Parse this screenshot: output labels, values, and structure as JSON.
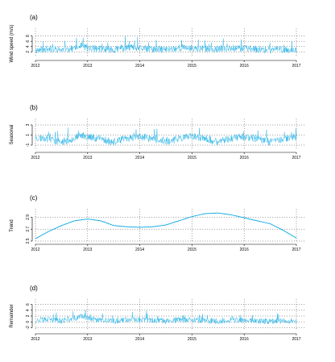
{
  "chart_data": [
    {
      "type": "line",
      "panel_label": "(a)",
      "ylabel": "Wind speed (m/s)",
      "x_tick_labels": [
        "2012",
        "2013",
        "2014",
        "2015",
        "2016",
        "2017"
      ],
      "y_tick_labels": [
        "2",
        "4",
        "6",
        "8"
      ],
      "y_ticks": [
        2,
        4,
        6,
        8
      ],
      "xlim": [
        2012,
        2017
      ],
      "ylim": [
        0,
        10
      ],
      "grid": true,
      "series_color": "#1aaee5",
      "x": [
        2012.0,
        2012.25,
        2012.5,
        2012.75,
        2012.9,
        2013.0,
        2013.25,
        2013.5,
        2013.75,
        2014.0,
        2014.25,
        2014.5,
        2014.75,
        2015.0,
        2015.25,
        2015.5,
        2015.75,
        2016.0,
        2016.25,
        2016.5,
        2016.75,
        2017.0
      ],
      "values": [
        2.5,
        3.0,
        2.6,
        3.2,
        4.2,
        3.4,
        3.0,
        2.7,
        3.5,
        3.2,
        2.9,
        2.8,
        3.4,
        3.3,
        3.1,
        2.9,
        3.3,
        3.2,
        2.9,
        2.6,
        2.9,
        2.4
      ]
    },
    {
      "type": "line",
      "panel_label": "(b)",
      "ylabel": "Seasonal",
      "x_tick_labels": [
        "2012",
        "2013",
        "2014",
        "2015",
        "2016",
        "2017"
      ],
      "y_tick_labels": [
        "-1",
        "1",
        "3"
      ],
      "y_ticks": [
        -1,
        1,
        3
      ],
      "xlim": [
        2012,
        2017
      ],
      "ylim": [
        -1.8,
        3.8
      ],
      "grid": true,
      "series_color": "#1aaee5",
      "x": [
        2012.0,
        2012.25,
        2012.5,
        2012.75,
        2012.9,
        2013.0,
        2013.25,
        2013.5,
        2013.75,
        2014.0,
        2014.25,
        2014.5,
        2014.75,
        2015.0,
        2015.25,
        2015.5,
        2015.75,
        2016.0,
        2016.25,
        2016.5,
        2016.75,
        2017.0
      ],
      "values": [
        0.4,
        0.2,
        -0.5,
        0.3,
        0.9,
        0.6,
        0.2,
        -0.5,
        0.3,
        0.6,
        0.2,
        -0.5,
        0.3,
        0.6,
        0.2,
        -0.5,
        0.3,
        0.6,
        0.2,
        -0.5,
        0.3,
        0.6
      ]
    },
    {
      "type": "line",
      "panel_label": "(c)",
      "ylabel": "Trend",
      "x_tick_labels": [
        "2012",
        "2013",
        "2014",
        "2015",
        "2016",
        "2017"
      ],
      "y_tick_labels": [
        "2.5",
        "2.7",
        "2.9"
      ],
      "y_ticks": [
        2.5,
        2.7,
        2.9
      ],
      "xlim": [
        2012,
        2017
      ],
      "ylim": [
        2.5,
        3.0
      ],
      "grid": true,
      "series_color": "#1aaee5",
      "x": [
        2012.0,
        2012.25,
        2012.5,
        2012.75,
        2013.0,
        2013.25,
        2013.5,
        2013.75,
        2014.0,
        2014.25,
        2014.5,
        2014.75,
        2015.0,
        2015.25,
        2015.5,
        2015.75,
        2016.0,
        2016.25,
        2016.5,
        2016.75,
        2017.0
      ],
      "values": [
        2.54,
        2.66,
        2.76,
        2.84,
        2.87,
        2.84,
        2.76,
        2.74,
        2.73,
        2.74,
        2.77,
        2.84,
        2.91,
        2.96,
        2.97,
        2.94,
        2.89,
        2.84,
        2.79,
        2.68,
        2.55
      ]
    },
    {
      "type": "line",
      "panel_label": "(d)",
      "ylabel": "Remainder",
      "x_tick_labels": [
        "2012",
        "2013",
        "2014",
        "2015",
        "2016",
        "2017"
      ],
      "y_tick_labels": [
        "-2",
        "0",
        "2",
        "4",
        "6"
      ],
      "y_ticks": [
        -2,
        0,
        2,
        4,
        6
      ],
      "xlim": [
        2012,
        2017
      ],
      "ylim": [
        -3,
        7
      ],
      "grid": true,
      "series_color": "#1aaee5",
      "x": [
        2012.0,
        2012.25,
        2012.5,
        2012.75,
        2012.9,
        2013.0,
        2013.25,
        2013.5,
        2013.75,
        2014.0,
        2014.25,
        2014.5,
        2014.75,
        2015.0,
        2015.25,
        2015.5,
        2015.75,
        2016.0,
        2016.25,
        2016.5,
        2016.75,
        2017.0
      ],
      "values": [
        0.5,
        0.6,
        0.3,
        0.9,
        2.0,
        1.0,
        0.4,
        0.1,
        0.8,
        0.7,
        0.4,
        0.2,
        0.6,
        0.5,
        0.3,
        0.1,
        0.5,
        0.4,
        0.3,
        0.0,
        0.4,
        0.2
      ]
    }
  ]
}
